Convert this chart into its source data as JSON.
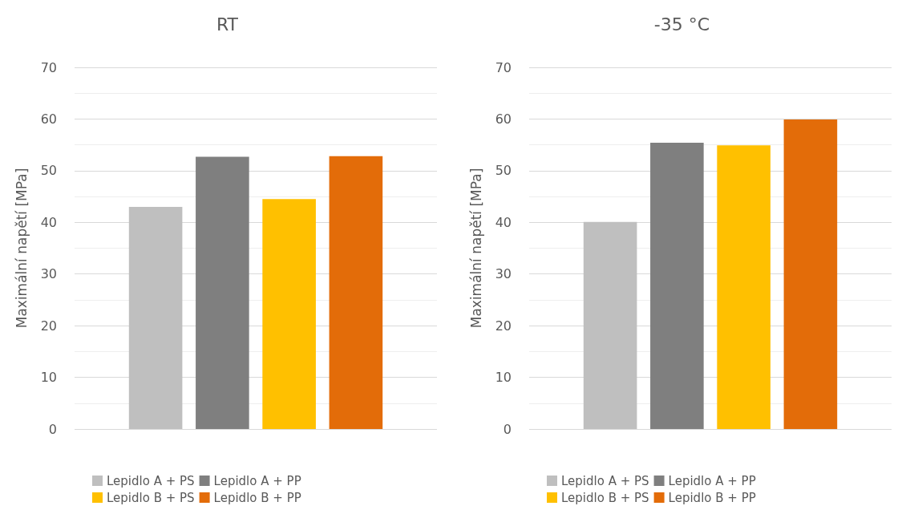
{
  "chart_data": [
    {
      "type": "bar",
      "title": "RT",
      "ylabel": "Maximální napětí [MPa]",
      "categories": [
        null
      ],
      "series": [
        {
          "name": "Lepidlo A + PS",
          "color": "#bfbfbf",
          "values": [
            43.0
          ]
        },
        {
          "name": "Lepidlo A + PP",
          "color": "#7f7f7f",
          "values": [
            52.7
          ]
        },
        {
          "name": "Lepidlo B + PS",
          "color": "#ffc000",
          "values": [
            44.5
          ]
        },
        {
          "name": "Lepidlo B + PP",
          "color": "#e36c09",
          "values": [
            52.8
          ]
        }
      ],
      "ylim": [
        0,
        70
      ],
      "yticks": [
        0,
        {
          "value": 5,
          "label": null
        },
        10,
        {
          "value": 15,
          "label": null
        },
        20,
        {
          "value": 25,
          "label": null
        },
        30,
        {
          "value": 35,
          "label": null
        },
        40,
        {
          "value": 45,
          "label": null
        },
        50,
        {
          "value": 55,
          "label": null
        },
        60,
        {
          "value": 65,
          "label": null
        },
        70
      ],
      "grid": "y",
      "legend": "bottom"
    },
    {
      "type": "bar",
      "title": "-35 °C",
      "ylabel": "Maximální napětí [MPa]",
      "categories": [
        null
      ],
      "series": [
        {
          "name": "Lepidlo A + PS",
          "color": "#bfbfbf",
          "values": [
            40.1
          ]
        },
        {
          "name": "Lepidlo A + PP",
          "color": "#7f7f7f",
          "values": [
            55.4
          ]
        },
        {
          "name": "Lepidlo B + PS",
          "color": "#ffc000",
          "values": [
            54.9
          ]
        },
        {
          "name": "Lepidlo B + PP",
          "color": "#e36c09",
          "values": [
            59.9
          ]
        }
      ],
      "ylim": [
        0,
        70
      ],
      "yticks": [
        0,
        {
          "value": 5,
          "label": null
        },
        10,
        {
          "value": 15,
          "label": null
        },
        20,
        {
          "value": 25,
          "label": null
        },
        30,
        {
          "value": 35,
          "label": null
        },
        40,
        {
          "value": 45,
          "label": null
        },
        50,
        {
          "value": 55,
          "label": null
        },
        60,
        {
          "value": 65,
          "label": null
        },
        70
      ],
      "grid": "y",
      "legend": "bottom"
    }
  ]
}
